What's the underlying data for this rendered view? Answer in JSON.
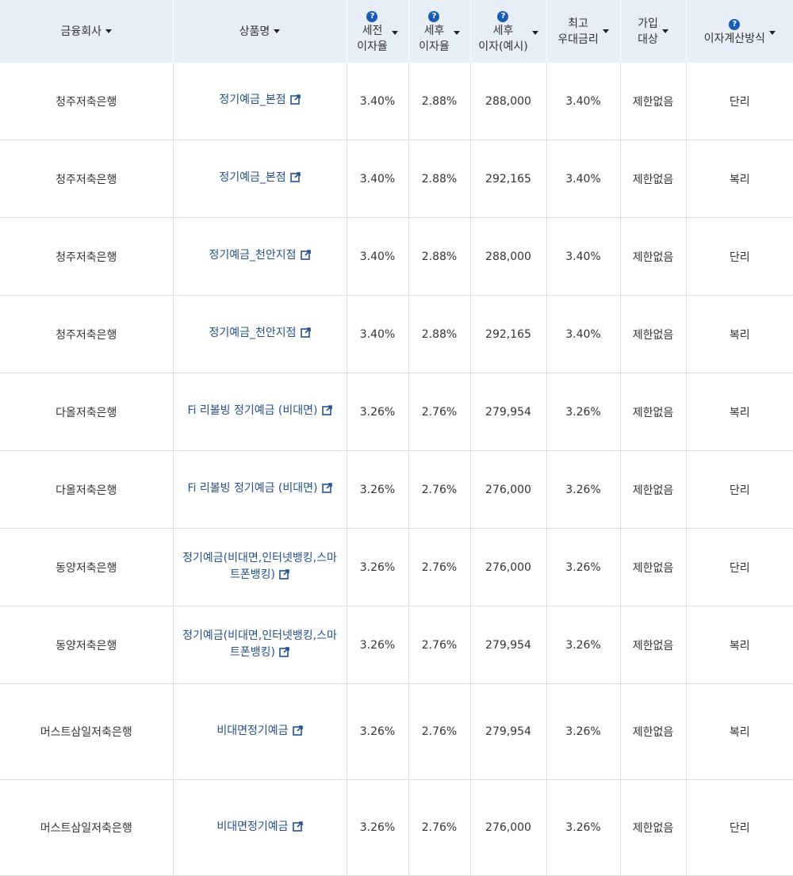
{
  "colors": {
    "header_bg": "#e8eef8",
    "link": "#23508f",
    "help_icon": "#1a5bb4"
  },
  "headers": [
    {
      "lines": [
        "금융회사"
      ],
      "help": false,
      "sort": true
    },
    {
      "lines": [
        "상품명"
      ],
      "help": false,
      "sort": true
    },
    {
      "lines": [
        "세전",
        "이자율"
      ],
      "help": true,
      "sort": true
    },
    {
      "lines": [
        "세후",
        "이자율"
      ],
      "help": true,
      "sort": true
    },
    {
      "lines": [
        "세후",
        "이자(예시)"
      ],
      "help": true,
      "sort": true
    },
    {
      "lines": [
        "최고",
        "우대금리"
      ],
      "help": false,
      "sort": true
    },
    {
      "lines": [
        "가입",
        "대상"
      ],
      "help": false,
      "sort": true
    },
    {
      "lines": [
        "이자계산방식"
      ],
      "help": true,
      "sort": true
    }
  ],
  "help_glyph": "?",
  "rows": [
    {
      "company": "청주저축은행",
      "product": [
        "정기예금_본점"
      ],
      "pre_rate": "3.40%",
      "post_rate": "2.88%",
      "interest": "288,000",
      "max_rate": "3.40%",
      "target": "제한없음",
      "method": "단리"
    },
    {
      "company": "청주저축은행",
      "product": [
        "정기예금_본점"
      ],
      "pre_rate": "3.40%",
      "post_rate": "2.88%",
      "interest": "292,165",
      "max_rate": "3.40%",
      "target": "제한없음",
      "method": "복리"
    },
    {
      "company": "청주저축은행",
      "product": [
        "정기예금_천안지점"
      ],
      "pre_rate": "3.40%",
      "post_rate": "2.88%",
      "interest": "288,000",
      "max_rate": "3.40%",
      "target": "제한없음",
      "method": "단리"
    },
    {
      "company": "청주저축은행",
      "product": [
        "정기예금_천안지점"
      ],
      "pre_rate": "3.40%",
      "post_rate": "2.88%",
      "interest": "292,165",
      "max_rate": "3.40%",
      "target": "제한없음",
      "method": "복리"
    },
    {
      "company": "다올저축은행",
      "product": [
        "Fi 리볼빙 정기예금 (비대면)"
      ],
      "pre_rate": "3.26%",
      "post_rate": "2.76%",
      "interest": "279,954",
      "max_rate": "3.26%",
      "target": "제한없음",
      "method": "복리"
    },
    {
      "company": "다올저축은행",
      "product": [
        "Fi 리볼빙 정기예금 (비대면)"
      ],
      "pre_rate": "3.26%",
      "post_rate": "2.76%",
      "interest": "276,000",
      "max_rate": "3.26%",
      "target": "제한없음",
      "method": "단리"
    },
    {
      "company": "동양저축은행",
      "product": [
        "정기예금(비대면,인터넷뱅킹,스마",
        "트폰뱅킹)"
      ],
      "pre_rate": "3.26%",
      "post_rate": "2.76%",
      "interest": "276,000",
      "max_rate": "3.26%",
      "target": "제한없음",
      "method": "단리"
    },
    {
      "company": "동양저축은행",
      "product": [
        "정기예금(비대면,인터넷뱅킹,스마",
        "트폰뱅킹)"
      ],
      "pre_rate": "3.26%",
      "post_rate": "2.76%",
      "interest": "279,954",
      "max_rate": "3.26%",
      "target": "제한없음",
      "method": "복리"
    },
    {
      "company": "머스트삼일저축은행",
      "product": [
        "비대면정기예금"
      ],
      "pre_rate": "3.26%",
      "post_rate": "2.76%",
      "interest": "279,954",
      "max_rate": "3.26%",
      "target": "제한없음",
      "method": "복리"
    },
    {
      "company": "머스트삼일저축은행",
      "product": [
        "비대면정기예금"
      ],
      "pre_rate": "3.26%",
      "post_rate": "2.76%",
      "interest": "276,000",
      "max_rate": "3.26%",
      "target": "제한없음",
      "method": "단리"
    }
  ]
}
